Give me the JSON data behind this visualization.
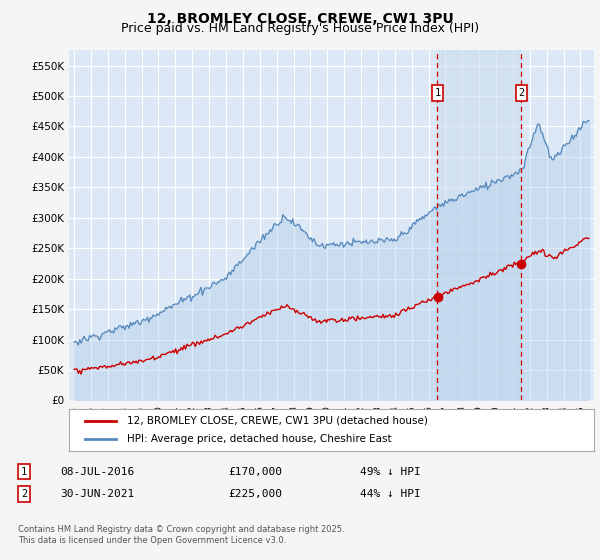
{
  "title": "12, BROMLEY CLOSE, CREWE, CW1 3PU",
  "subtitle": "Price paid vs. HM Land Registry's House Price Index (HPI)",
  "red_label": "12, BROMLEY CLOSE, CREWE, CW1 3PU (detached house)",
  "blue_label": "HPI: Average price, detached house, Cheshire East",
  "annotation1_date": "08-JUL-2016",
  "annotation1_price": "£170,000",
  "annotation1_hpi": "49% ↓ HPI",
  "annotation1_year": 2016.52,
  "annotation2_date": "30-JUN-2021",
  "annotation2_price": "£225,000",
  "annotation2_hpi": "44% ↓ HPI",
  "annotation2_year": 2021.5,
  "footnote": "Contains HM Land Registry data © Crown copyright and database right 2025.\nThis data is licensed under the Open Government Licence v3.0.",
  "ylim": [
    0,
    575000
  ],
  "yticks": [
    0,
    50000,
    100000,
    150000,
    200000,
    250000,
    300000,
    350000,
    400000,
    450000,
    500000,
    550000
  ],
  "ytick_labels": [
    "£0",
    "£50K",
    "£100K",
    "£150K",
    "£200K",
    "£250K",
    "£300K",
    "£350K",
    "£400K",
    "£450K",
    "£500K",
    "£550K"
  ],
  "bg_color": "#dce8f5",
  "grid_color": "#ffffff",
  "red_color": "#cc0000",
  "blue_color": "#5588bb",
  "blue_fill_color": "#aac8e8",
  "highlight_color": "#ccddf0",
  "vline_color": "#cc0000",
  "title_fontsize": 10,
  "subtitle_fontsize": 9
}
